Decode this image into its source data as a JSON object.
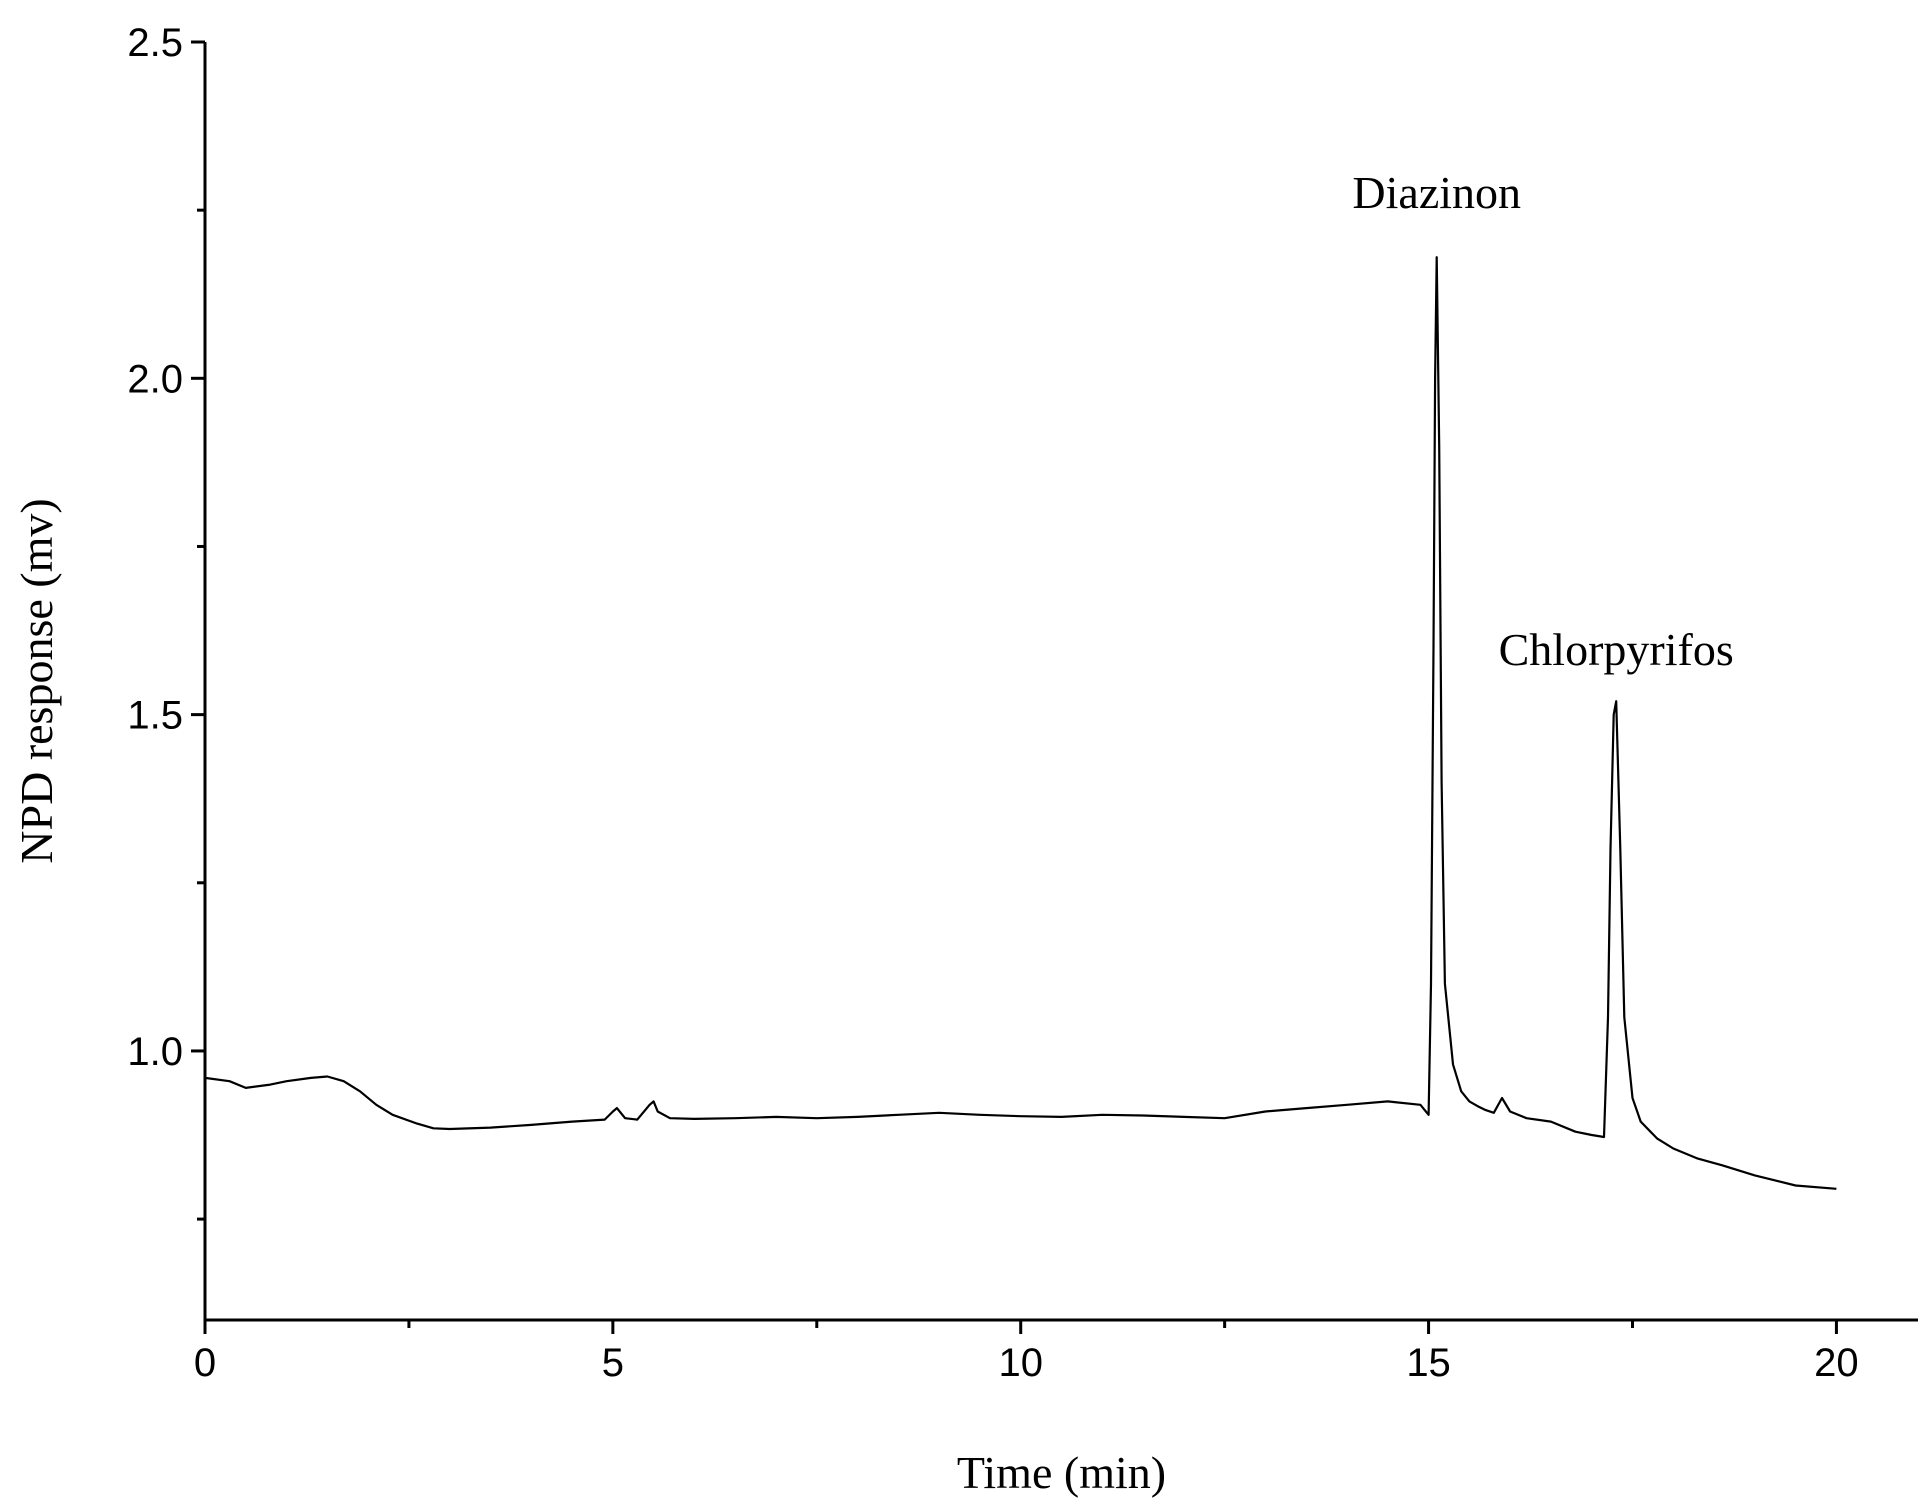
{
  "chart_data": {
    "type": "line",
    "xlabel": "Time (min)",
    "ylabel": "NPD response (mv)",
    "xlim": [
      0,
      21
    ],
    "ylim": [
      0.6,
      2.5
    ],
    "x_ticks_major": [
      0,
      5,
      10,
      15,
      20
    ],
    "x_tick_labels": [
      "0",
      "5",
      "10",
      "15",
      "20"
    ],
    "x_ticks_minor": [
      2.5,
      7.5,
      12.5,
      17.5
    ],
    "y_ticks_major": [
      1.0,
      1.5,
      2.0,
      2.5
    ],
    "y_tick_labels": [
      "1.0",
      "1.5",
      "2.0",
      "2.5"
    ],
    "y_ticks_minor": [
      0.75,
      1.25,
      1.75,
      2.25
    ],
    "grid": false,
    "annotations": [
      {
        "text": "Diazinon",
        "x": 15.1,
        "y": 2.2
      },
      {
        "text": "Chlorpyrifos",
        "x": 17.3,
        "y": 1.52
      }
    ],
    "series": [
      {
        "x": [
          0,
          0.3,
          0.5,
          0.8,
          1.0,
          1.3,
          1.5,
          1.7,
          1.9,
          2.1,
          2.3,
          2.6,
          2.8,
          3.0,
          3.5,
          4.0,
          4.5,
          4.9,
          5.0,
          5.05,
          5.15,
          5.3,
          5.45,
          5.5,
          5.55,
          5.7,
          6.0,
          6.5,
          7.0,
          7.5,
          8.0,
          8.5,
          9.0,
          9.5,
          10.0,
          10.5,
          11.0,
          11.5,
          12.0,
          12.5,
          13.0,
          13.5,
          14.0,
          14.5,
          14.9,
          15.0,
          15.03,
          15.06,
          15.08,
          15.1,
          15.13,
          15.16,
          15.2,
          15.3,
          15.4,
          15.5,
          15.6,
          15.7,
          15.8,
          15.9,
          16.0,
          16.2,
          16.5,
          16.8,
          17.0,
          17.15,
          17.2,
          17.23,
          17.27,
          17.3,
          17.35,
          17.4,
          17.5,
          17.6,
          17.8,
          18.0,
          18.3,
          18.6,
          19.0,
          19.5,
          20.0
        ],
        "y": [
          0.96,
          0.955,
          0.945,
          0.95,
          0.955,
          0.96,
          0.962,
          0.955,
          0.94,
          0.92,
          0.905,
          0.892,
          0.885,
          0.884,
          0.886,
          0.89,
          0.895,
          0.898,
          0.91,
          0.915,
          0.9,
          0.898,
          0.92,
          0.925,
          0.91,
          0.9,
          0.899,
          0.9,
          0.902,
          0.9,
          0.902,
          0.905,
          0.908,
          0.905,
          0.903,
          0.902,
          0.905,
          0.904,
          0.902,
          0.9,
          0.91,
          0.915,
          0.92,
          0.925,
          0.92,
          0.905,
          1.1,
          1.6,
          2.0,
          2.18,
          1.9,
          1.4,
          1.1,
          0.98,
          0.94,
          0.925,
          0.918,
          0.912,
          0.908,
          0.93,
          0.91,
          0.9,
          0.895,
          0.88,
          0.875,
          0.872,
          1.05,
          1.3,
          1.5,
          1.52,
          1.3,
          1.05,
          0.93,
          0.895,
          0.87,
          0.855,
          0.84,
          0.83,
          0.815,
          0.8,
          0.795
        ]
      }
    ]
  }
}
